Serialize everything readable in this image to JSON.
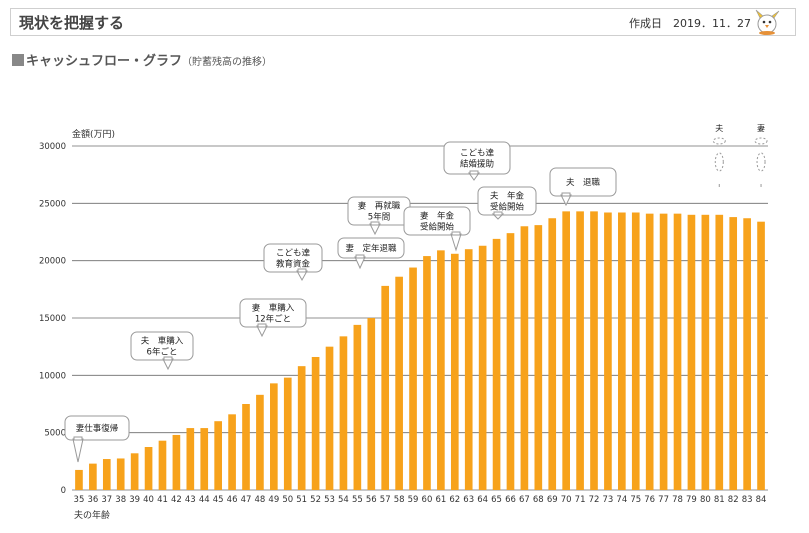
{
  "header": {
    "title": "現状を把握する",
    "date_label": "作成日",
    "date_value": "2019．11．27"
  },
  "section": {
    "title": "キャッシュフロー・グラフ",
    "subtitle": "（貯蓄残高の推移）"
  },
  "colors": {
    "bar": "#f7a21b",
    "grid": "#6b6b6b"
  },
  "chart_data": {
    "type": "bar",
    "title": "キャッシュフロー・グラフ（貯蓄残高の推移）",
    "ylabel": "金額(万円)",
    "xlabel": "夫の年齢",
    "ylim": [
      0,
      30000
    ],
    "yticks": [
      0,
      5000,
      10000,
      15000,
      20000,
      25000,
      30000
    ],
    "categories": [
      "35",
      "36",
      "37",
      "38",
      "39",
      "40",
      "41",
      "42",
      "43",
      "44",
      "45",
      "46",
      "47",
      "48",
      "49",
      "50",
      "51",
      "52",
      "53",
      "54",
      "55",
      "56",
      "57",
      "58",
      "59",
      "60",
      "61",
      "62",
      "63",
      "64",
      "65",
      "66",
      "67",
      "68",
      "69",
      "70",
      "71",
      "72",
      "73",
      "74",
      "75",
      "76",
      "77",
      "78",
      "79",
      "80",
      "81",
      "82",
      "83",
      "84"
    ],
    "values": [
      1750,
      2300,
      2700,
      2750,
      3200,
      3750,
      4300,
      4800,
      5400,
      5400,
      6000,
      6600,
      7500,
      8300,
      9300,
      9800,
      10800,
      11600,
      12500,
      13400,
      14400,
      15000,
      17800,
      18600,
      19400,
      20400,
      20900,
      20600,
      21000,
      21300,
      21900,
      22400,
      23000,
      23100,
      23700,
      24300,
      24300,
      24300,
      24200,
      24200,
      24200,
      24100,
      24100,
      24100,
      24000,
      24000,
      24000,
      23800,
      23700,
      23400
    ],
    "annotations": [
      {
        "at": "35",
        "lines": [
          "妻仕事復帰"
        ]
      },
      {
        "at": "40",
        "lines": [
          "夫　車購入",
          "6年ごと"
        ]
      },
      {
        "at": "48",
        "lines": [
          "妻　車購入",
          "12年ごと"
        ]
      },
      {
        "at": "53",
        "lines": [
          "こども達",
          "教育資金"
        ]
      },
      {
        "at": "57",
        "lines": [
          "妻　定年退職"
        ]
      },
      {
        "at": "56",
        "lines": [
          "妻　再就職",
          "5年間"
        ]
      },
      {
        "at": "61",
        "lines": [
          "妻　年金",
          "受給開始"
        ]
      },
      {
        "at": "66",
        "lines": [
          "夫　年金",
          "受給開始"
        ]
      },
      {
        "at": "70",
        "lines": [
          "夫　退職"
        ]
      },
      {
        "at": "63",
        "lines": [
          "こども達",
          "結婚援助"
        ]
      }
    ],
    "markers": [
      {
        "at": "81",
        "label": "夫"
      },
      {
        "at": "84",
        "label": "妻"
      }
    ]
  }
}
